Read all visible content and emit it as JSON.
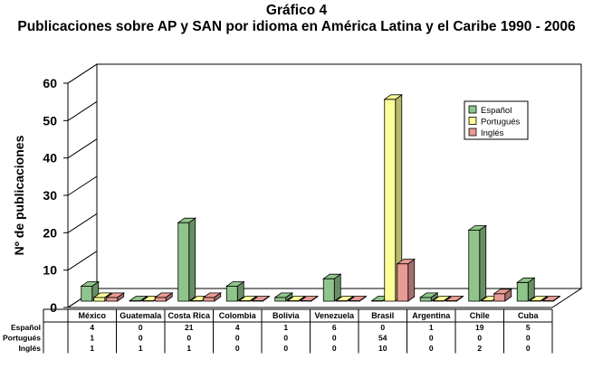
{
  "header": {
    "title": "Gráfico 4",
    "subtitle": "Publicaciones sobre AP y SAN por idioma en América Latina y el Caribe 1990 - 2006"
  },
  "chart_data": {
    "type": "bar",
    "style": "3d-grouped-column-with-data-table",
    "title": "Gráfico 4",
    "subtitle": "Publicaciones sobre AP y SAN por idioma en América Latina y el Caribe 1990 - 2006",
    "xlabel": "",
    "ylabel": "Nº de publicaciones",
    "ylim": [
      0,
      60
    ],
    "yticks": [
      0,
      10,
      20,
      30,
      40,
      50,
      60
    ],
    "grid": false,
    "legend_position": "top-right",
    "categories": [
      "México",
      "Guatemala",
      "Costa Rica",
      "Colombia",
      "Bolivia",
      "Venezuela",
      "Brasil",
      "Argentina",
      "Chile",
      "Cuba"
    ],
    "series": [
      {
        "name": "Español",
        "color": "#8fc58b",
        "values": [
          4,
          0,
          21,
          4,
          1,
          6,
          0,
          1,
          19,
          5
        ]
      },
      {
        "name": "Portugués",
        "color": "#ffff99",
        "values": [
          1,
          0,
          0,
          0,
          0,
          0,
          54,
          0,
          0,
          0
        ]
      },
      {
        "name": "Inglés",
        "color": "#e89a94",
        "values": [
          1,
          1,
          1,
          0,
          0,
          0,
          10,
          0,
          2,
          0
        ]
      }
    ]
  }
}
